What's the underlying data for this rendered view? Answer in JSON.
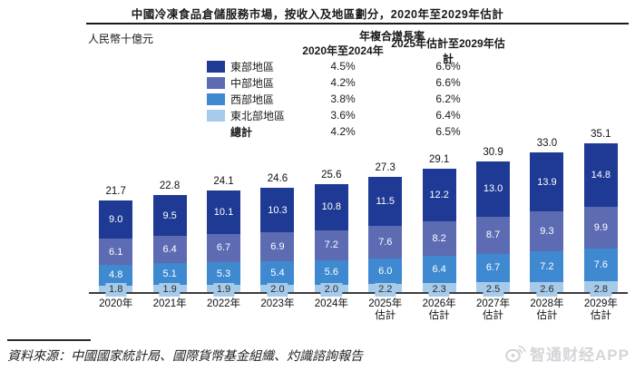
{
  "title": "中國冷凍食品倉儲服務市場，按收入及地區劃分，2020年至2029年估計",
  "unit_label": "人民幣十億元",
  "legend": {
    "cagr_title": "年複合增長率",
    "col1_header": "2020年至2024年",
    "col2_header": "2025年估計至2029年估計",
    "rows": [
      {
        "label": "東部地區",
        "cagr1": "4.5%",
        "cagr2": "6.6%"
      },
      {
        "label": "中部地區",
        "cagr1": "4.2%",
        "cagr2": "6.6%"
      },
      {
        "label": "西部地區",
        "cagr1": "3.8%",
        "cagr2": "6.2%"
      },
      {
        "label": "東北部地區",
        "cagr1": "3.6%",
        "cagr2": "6.4%"
      }
    ],
    "total_row": {
      "label": "總計",
      "cagr1": "4.2%",
      "cagr2": "6.5%"
    }
  },
  "chart_data": {
    "type": "bar",
    "stacked": true,
    "title": "中國冷凍食品倉儲服務市場，按收入及地區劃分，2020年至2029年估計",
    "ylabel": "人民幣十億元",
    "legend_position": "top",
    "grid": false,
    "categories": [
      "2020年",
      "2021年",
      "2022年",
      "2023年",
      "2024年",
      "2025年估計",
      "2026年估計",
      "2027年估計",
      "2028年估計",
      "2029年估計"
    ],
    "series": [
      {
        "name": "東部地區",
        "color": "#1E3A94",
        "values": [
          9.0,
          9.5,
          10.1,
          10.3,
          10.8,
          11.5,
          12.2,
          13.0,
          13.9,
          14.8
        ]
      },
      {
        "name": "中部地區",
        "color": "#5C6BB2",
        "values": [
          6.1,
          6.4,
          6.7,
          6.9,
          7.2,
          7.6,
          8.2,
          8.7,
          9.3,
          9.9
        ]
      },
      {
        "name": "西部地區",
        "color": "#3E89D0",
        "values": [
          4.8,
          5.1,
          5.3,
          5.4,
          5.6,
          6.0,
          6.4,
          6.7,
          7.2,
          7.6
        ]
      },
      {
        "name": "東北部地區",
        "color": "#A6CBEA",
        "values": [
          1.8,
          1.9,
          1.9,
          2.0,
          2.0,
          2.2,
          2.3,
          2.5,
          2.6,
          2.8
        ]
      }
    ],
    "totals": [
      21.7,
      22.8,
      24.1,
      24.6,
      25.6,
      27.3,
      29.1,
      30.9,
      33.0,
      35.1
    ]
  },
  "source": "資料來源：中國國家統計局、國際貨幣基金組織、灼識諮詢報告",
  "watermark": "智通财经APP",
  "colors": {
    "east": "#1E3A94",
    "central": "#5C6BB2",
    "west": "#3E89D0",
    "northeast": "#A6CBEA",
    "axis": "#3d3d3d",
    "watermark": "#d3d6d9"
  }
}
